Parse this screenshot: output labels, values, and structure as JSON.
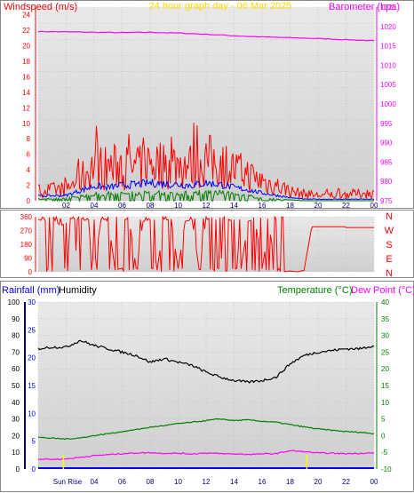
{
  "chart_data": [
    {
      "type": "line",
      "title": "24 hour graph day - 06 Mar 2025",
      "ylabel_left": "Windspeed (m/s)",
      "ylabel_right": "Barometer (hpa)",
      "ylim_left": [
        0,
        25
      ],
      "ylim_right": [
        975,
        1025
      ],
      "left_ticks": [
        "0",
        "2",
        "4",
        "6",
        "8",
        "10",
        "12",
        "14",
        "16",
        "18",
        "20",
        "22",
        "24"
      ],
      "right_ticks": [
        "975",
        "980",
        "985",
        "990",
        "995",
        "1000",
        "1005",
        "1010",
        "1015",
        "1020",
        "1025"
      ],
      "x_ticks": [
        "02",
        "04",
        "06",
        "08",
        "10",
        "12",
        "14",
        "16",
        "18",
        "20",
        "22",
        "00"
      ],
      "series": [
        {
          "key": "barometer",
          "axis": "right",
          "color": "#ff00ff",
          "x": [
            0,
            2,
            4,
            6,
            8,
            10,
            12,
            14,
            16,
            18,
            20,
            22,
            24
          ],
          "values": [
            1018.7,
            1018.6,
            1018.5,
            1018.4,
            1018.5,
            1018.3,
            1018.0,
            1017.6,
            1017.3,
            1017.1,
            1016.9,
            1016.6,
            1016.3
          ]
        },
        {
          "key": "gust",
          "axis": "left",
          "color": "#ff0000",
          "x": [
            0,
            2,
            3,
            4,
            5,
            6,
            7,
            8,
            9,
            10,
            11,
            12,
            13,
            14,
            15,
            16,
            17,
            18,
            19,
            20,
            24
          ],
          "values": [
            1.3,
            1.5,
            2.8,
            4.6,
            4.2,
            4.5,
            4.0,
            5.0,
            4.6,
            4.8,
            4.5,
            5.2,
            4.9,
            4.0,
            3.4,
            2.4,
            2.0,
            1.2,
            0.9,
            0.7,
            1.0
          ]
        },
        {
          "key": "average",
          "axis": "left",
          "color": "#0000ff",
          "x": [
            0,
            2,
            3,
            4,
            5,
            6,
            7,
            8,
            9,
            10,
            11,
            12,
            13,
            14,
            15,
            16,
            17,
            18,
            19,
            20,
            24
          ],
          "values": [
            0.6,
            0.7,
            1.3,
            1.9,
            1.7,
            2.0,
            2.1,
            2.3,
            2.2,
            2.1,
            2.0,
            2.3,
            2.1,
            1.7,
            1.4,
            1.0,
            0.7,
            0.4,
            0.2,
            0.2,
            0.2
          ]
        },
        {
          "key": "lull",
          "axis": "left",
          "color": "#008000",
          "x": [
            0,
            2,
            3,
            4,
            5,
            6,
            7,
            8,
            9,
            10,
            11,
            12,
            13,
            14,
            15,
            16,
            17,
            18,
            19,
            20,
            24
          ],
          "values": [
            0.2,
            0.3,
            0.6,
            0.8,
            0.9,
            0.9,
            1.0,
            1.1,
            1.0,
            1.0,
            1.0,
            1.1,
            1.0,
            0.8,
            0.6,
            0.4,
            0.2,
            0.1,
            0.0,
            0.0,
            0.0
          ]
        }
      ]
    },
    {
      "type": "scatter",
      "ylabel_right_letters": [
        "N",
        "W",
        "S",
        "E",
        "N"
      ],
      "ylim": [
        0,
        360
      ],
      "left_ticks": [
        "0",
        "90",
        "180",
        "270",
        "360"
      ],
      "series": [
        {
          "key": "direction",
          "color": "#ff0000",
          "x": [
            0,
            0.8,
            1,
            1.2,
            1.6,
            2,
            2.5,
            3,
            3.5,
            4,
            4.5,
            5,
            5.5,
            6,
            6.5,
            7,
            7.5,
            8,
            8.5,
            9,
            9.5,
            10,
            10.5,
            11,
            11.5,
            12,
            12.5,
            13,
            13.5,
            14,
            14.5,
            15,
            15.5,
            16,
            16.5,
            17,
            17.5,
            18,
            18.5,
            19,
            19.5,
            20,
            21,
            22,
            23,
            24
          ],
          "values": [
            340,
            330,
            5,
            335,
            300,
            320,
            10,
            330,
            340,
            15,
            350,
            330,
            20,
            340,
            345,
            25,
            330,
            340,
            10,
            335,
            345,
            20,
            330,
            340,
            15,
            345,
            330,
            25,
            335,
            340,
            20,
            330,
            345,
            20,
            300,
            10,
            0,
            5,
            0,
            10,
            270,
            290,
            300,
            290,
            290,
            290
          ]
        }
      ]
    },
    {
      "type": "line",
      "ylabel_left": "Rainfall (mm)",
      "ylabel_left2": "Humidity",
      "ylabel_right": "Temperature (°C)",
      "ylabel_right2": "Dew Point (°C)",
      "ylim_humidity": [
        0,
        100
      ],
      "ylim_rain": [
        0,
        30
      ],
      "ylim_temp": [
        -10,
        40
      ],
      "humidity_ticks": [
        "0",
        "10",
        "20",
        "30",
        "40",
        "50",
        "60",
        "70",
        "80",
        "90",
        "100"
      ],
      "rain_ticks": [
        "0",
        "5",
        "10",
        "15",
        "20",
        "25",
        "30"
      ],
      "temp_ticks": [
        "-10",
        "-5",
        "0",
        "5",
        "10",
        "15",
        "20",
        "25",
        "30",
        "35",
        "40"
      ],
      "x_ticks": [
        "Sun Rise",
        "04",
        "06",
        "08",
        "10",
        "12",
        "14",
        "16",
        "18",
        "20",
        "22",
        "00"
      ],
      "series": [
        {
          "key": "humidity",
          "axis": "humidity",
          "color": "#000000",
          "x": [
            0,
            1,
            2,
            3,
            4,
            5,
            6,
            7,
            8,
            9,
            10,
            11,
            12,
            13,
            14,
            15,
            16,
            17,
            18,
            19,
            20,
            21,
            22,
            23,
            24
          ],
          "values": [
            72,
            73,
            73,
            77,
            74,
            72,
            70,
            68,
            64,
            66,
            64,
            62,
            58,
            55,
            53,
            52,
            53,
            55,
            63,
            68,
            70,
            71,
            72,
            72,
            74
          ]
        },
        {
          "key": "temperature",
          "axis": "temp",
          "color": "#008000",
          "x": [
            0,
            1,
            2,
            3,
            4,
            5,
            6,
            7,
            8,
            9,
            10,
            11,
            12,
            13,
            14,
            15,
            16,
            17,
            18,
            19,
            20,
            21,
            22,
            23,
            24
          ],
          "values": [
            -0.5,
            -0.8,
            -1.0,
            -0.7,
            0.0,
            0.6,
            1.2,
            1.8,
            2.5,
            3.0,
            3.6,
            4.0,
            4.5,
            5.0,
            4.5,
            4.7,
            4.3,
            4.0,
            3.3,
            2.6,
            2.0,
            1.6,
            1.2,
            1.0,
            0.6
          ]
        },
        {
          "key": "dewpoint",
          "axis": "temp",
          "color": "#ff00ff",
          "x": [
            0,
            1,
            2,
            3,
            4,
            5,
            6,
            7,
            8,
            9,
            10,
            11,
            12,
            13,
            14,
            15,
            16,
            17,
            18,
            19,
            20,
            21,
            22,
            23,
            24
          ],
          "values": [
            -7.0,
            -7.1,
            -7.0,
            -6.5,
            -6.0,
            -5.7,
            -5.4,
            -5.2,
            -5.1,
            -5.3,
            -5.3,
            -5.5,
            -5.2,
            -5.4,
            -5.5,
            -5.6,
            -5.5,
            -5.4,
            -4.5,
            -4.8,
            -5.2,
            -5.3,
            -5.4,
            -5.3,
            -5.2
          ]
        },
        {
          "key": "rainfall",
          "axis": "rain",
          "color": "#0000ff",
          "x": [
            0,
            24
          ],
          "values": [
            0,
            0
          ]
        }
      ],
      "sun_markers_x": [
        1.8,
        19.2
      ]
    }
  ]
}
